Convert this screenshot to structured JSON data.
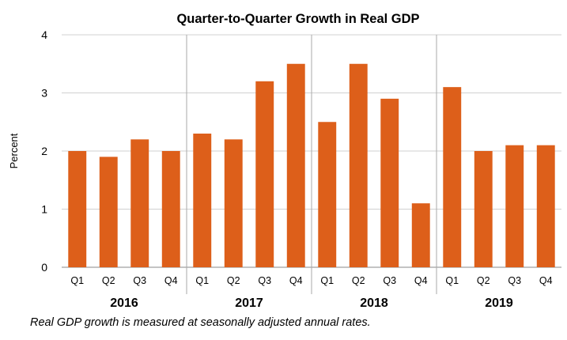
{
  "chart_data": {
    "type": "bar",
    "title": "Quarter-to-Quarter Growth in Real GDP",
    "ylabel": "Percent",
    "xlabel": "",
    "ylim": [
      0,
      4
    ],
    "yticks": [
      0,
      1,
      2,
      3,
      4
    ],
    "grid": true,
    "legend": "none",
    "bar_color": "#DD5F1A",
    "groups": [
      {
        "year": "2016",
        "quarters": [
          "Q1",
          "Q2",
          "Q3",
          "Q4"
        ],
        "values": [
          2.0,
          1.9,
          2.2,
          2.0
        ]
      },
      {
        "year": "2017",
        "quarters": [
          "Q1",
          "Q2",
          "Q3",
          "Q4"
        ],
        "values": [
          2.3,
          2.2,
          3.2,
          3.5
        ]
      },
      {
        "year": "2018",
        "quarters": [
          "Q1",
          "Q2",
          "Q3",
          "Q4"
        ],
        "values": [
          2.5,
          3.5,
          2.9,
          1.1
        ]
      },
      {
        "year": "2019",
        "quarters": [
          "Q1",
          "Q2",
          "Q3",
          "Q4"
        ],
        "values": [
          3.1,
          2.0,
          2.1,
          2.1
        ]
      }
    ],
    "footnote": "Real GDP growth is measured at seasonally adjusted annual rates."
  }
}
